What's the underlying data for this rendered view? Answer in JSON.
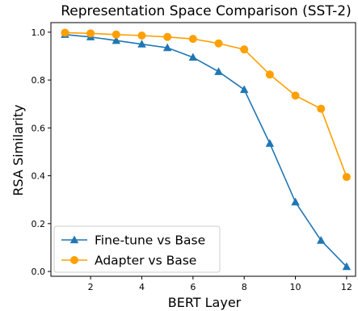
{
  "chart_data": {
    "type": "line",
    "title": "Representation Space Comparison (SST-2)",
    "xlabel": "BERT Layer",
    "ylabel": "RSA Similarity",
    "x": [
      1,
      2,
      3,
      4,
      5,
      6,
      7,
      8,
      9,
      10,
      11,
      12
    ],
    "xlim": [
      0.45,
      12.35
    ],
    "ylim": [
      -0.02,
      1.04
    ],
    "xticks": [
      2,
      4,
      6,
      8,
      10,
      12
    ],
    "xtick_labels": [
      "2",
      "4",
      "6",
      "8",
      "10",
      "12"
    ],
    "yticks": [
      0.0,
      0.2,
      0.4,
      0.6,
      0.8,
      1.0
    ],
    "ytick_labels": [
      "0.0",
      "0.2",
      "0.4",
      "0.6",
      "0.8",
      "1.0"
    ],
    "grid": false,
    "legend_position": "lower-left",
    "series": [
      {
        "name": "Fine-tune vs Base",
        "color": "#1f77b4",
        "marker": "triangle",
        "values": [
          0.99,
          0.98,
          0.965,
          0.95,
          0.935,
          0.895,
          0.835,
          0.76,
          0.535,
          0.29,
          0.13,
          0.02
        ]
      },
      {
        "name": "Adapter vs Base",
        "color": "#ff9f00",
        "marker": "circle",
        "values": [
          0.998,
          0.995,
          0.99,
          0.986,
          0.98,
          0.972,
          0.953,
          0.928,
          0.823,
          0.735,
          0.68,
          0.395
        ]
      }
    ]
  }
}
